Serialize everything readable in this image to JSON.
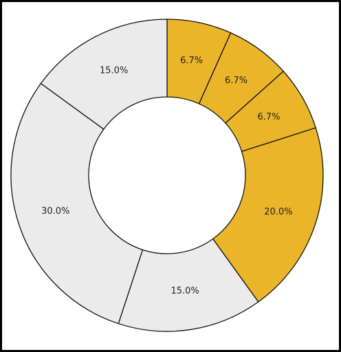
{
  "chart_data": {
    "type": "pie",
    "variant": "donut",
    "title": "",
    "legend": "none",
    "start_angle": "top (12 o'clock), clockwise",
    "slices": [
      {
        "label": "6.7%",
        "value": 6.7,
        "color": "#EBB52A"
      },
      {
        "label": "6.7%",
        "value": 6.7,
        "color": "#EBB52A"
      },
      {
        "label": "6.7%",
        "value": 6.7,
        "color": "#EBB52A"
      },
      {
        "label": "20.0%",
        "value": 20.0,
        "color": "#EBB52A"
      },
      {
        "label": "15.0%",
        "value": 15.0,
        "color": "#EBEBEB"
      },
      {
        "label": "30.0%",
        "value": 30.0,
        "color": "#EBEBEB"
      },
      {
        "label": "15.0%",
        "value": 15.0,
        "color": "#EBEBEB"
      }
    ],
    "colors": {
      "highlight": "#EBB52A",
      "base": "#EBEBEB",
      "stroke": "#111111",
      "frame": "#000000"
    }
  }
}
